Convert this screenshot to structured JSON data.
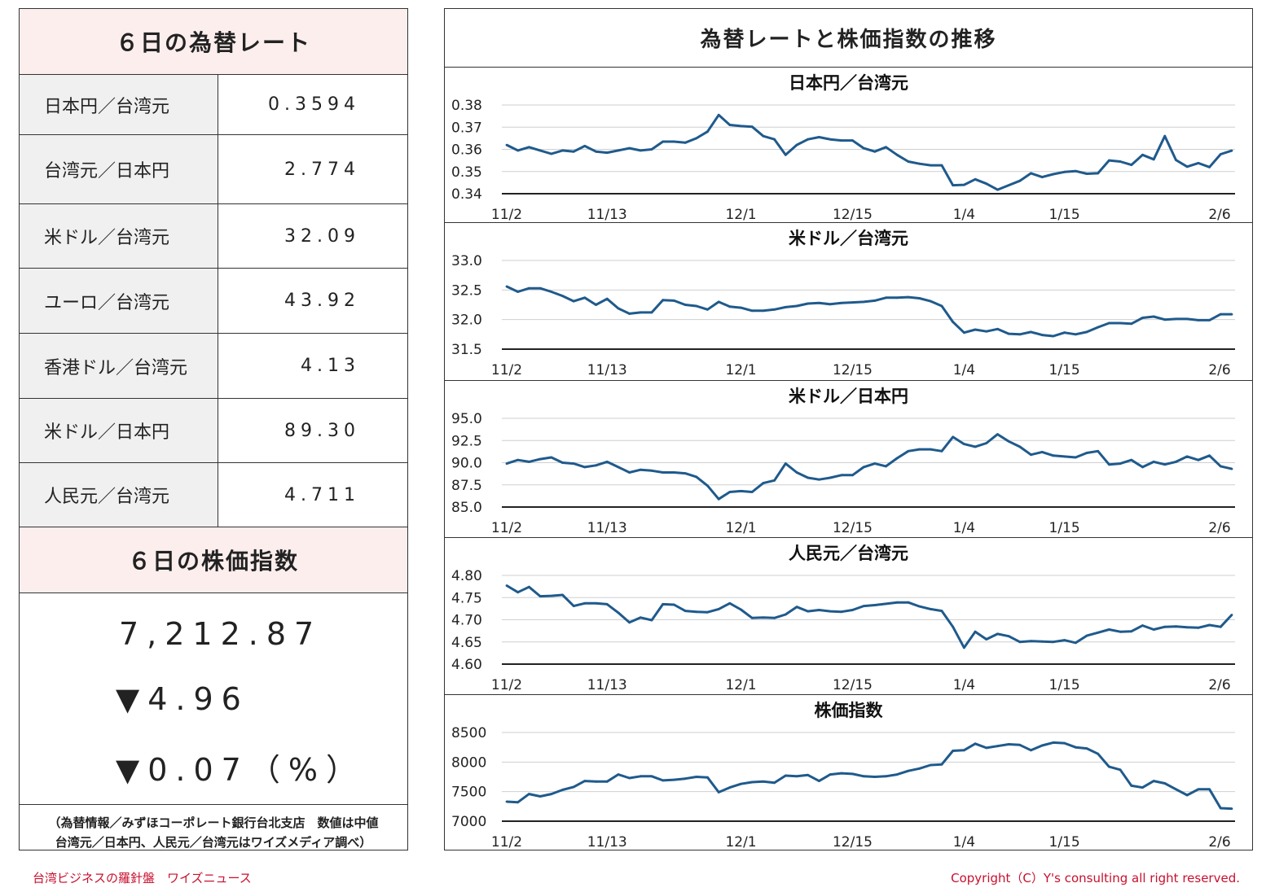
{
  "left": {
    "rates_title": "６日の為替レート",
    "rates": [
      {
        "name": "日本円／台湾元",
        "value": "0.3594"
      },
      {
        "name": "台湾元／日本円",
        "value": "2.774"
      },
      {
        "name": "米ドル／台湾元",
        "value": "32.09"
      },
      {
        "name": "ユーロ／台湾元",
        "value": "43.92"
      },
      {
        "name": "香港ドル／台湾元",
        "value": "4.13"
      },
      {
        "name": "米ドル／日本円",
        "value": "89.30"
      },
      {
        "name": "人民元／台湾元",
        "value": "4.711"
      }
    ],
    "stock_title": "６日の株価指数",
    "stock_value": "7,212.87",
    "stock_change": "▼4.96",
    "stock_change_pct": "▼0.07（%）",
    "note_line1": "（為替情報／みずほコーポレート銀行台北支店　数値は中値",
    "note_line2": "台湾元／日本円、人民元／台湾元はワイズメディア調べ）"
  },
  "right": {
    "title": "為替レートと株価指数の推移"
  },
  "footer": {
    "left": "台湾ビジネスの羅針盤　ワイズニュース",
    "right": "Copyright（C）Y's consulting all right reserved."
  },
  "colors": {
    "line": "#1f5a8c",
    "header_bg": "#fdeeee",
    "label_bg": "#f0f0f0",
    "footer": "#c8102e"
  },
  "chart_data": [
    {
      "type": "line",
      "title": "日本円／台湾元",
      "x_ticks": [
        "11/2",
        "11/13",
        "12/1",
        "12/15",
        "1/4",
        "1/15",
        "2/6"
      ],
      "x_tick_index": [
        0,
        9,
        21,
        31,
        41,
        50,
        65
      ],
      "ylim": [
        0.34,
        0.38
      ],
      "y_ticks": [
        "0.38",
        "0.37",
        "0.36",
        "0.35",
        "0.34"
      ],
      "values": [
        0.362,
        0.3595,
        0.361,
        0.3595,
        0.358,
        0.3595,
        0.359,
        0.3615,
        0.359,
        0.3585,
        0.3595,
        0.3605,
        0.3595,
        0.36,
        0.3635,
        0.3635,
        0.363,
        0.365,
        0.368,
        0.3755,
        0.371,
        0.3705,
        0.3702,
        0.366,
        0.3645,
        0.3575,
        0.362,
        0.3645,
        0.3655,
        0.3645,
        0.364,
        0.364,
        0.3605,
        0.359,
        0.361,
        0.3575,
        0.3545,
        0.3535,
        0.3528,
        0.3528,
        0.3438,
        0.344,
        0.3465,
        0.3445,
        0.3418,
        0.3438,
        0.3458,
        0.3492,
        0.3475,
        0.3488,
        0.3498,
        0.3502,
        0.349,
        0.3492,
        0.355,
        0.3545,
        0.353,
        0.3575,
        0.3555,
        0.366,
        0.3552,
        0.3522,
        0.3538,
        0.352,
        0.3578,
        0.3594
      ]
    },
    {
      "type": "line",
      "title": "米ドル／台湾元",
      "x_ticks": [
        "11/2",
        "11/13",
        "12/1",
        "12/15",
        "1/4",
        "1/15",
        "2/6"
      ],
      "x_tick_index": [
        0,
        9,
        21,
        31,
        41,
        50,
        65
      ],
      "ylim": [
        31.5,
        33.0
      ],
      "y_ticks": [
        "33.0",
        "32.5",
        "32.0",
        "31.5"
      ],
      "values": [
        32.56,
        32.47,
        32.53,
        32.53,
        32.47,
        32.4,
        32.31,
        32.37,
        32.25,
        32.35,
        32.19,
        32.1,
        32.12,
        32.12,
        32.33,
        32.32,
        32.25,
        32.23,
        32.17,
        32.3,
        32.22,
        32.2,
        32.15,
        32.15,
        32.17,
        32.21,
        32.23,
        32.27,
        32.28,
        32.26,
        32.28,
        32.29,
        32.3,
        32.32,
        32.37,
        32.37,
        32.38,
        32.36,
        32.31,
        32.23,
        31.96,
        31.78,
        31.83,
        31.8,
        31.84,
        31.76,
        31.75,
        31.79,
        31.74,
        31.72,
        31.78,
        31.75,
        31.79,
        31.87,
        31.94,
        31.94,
        31.93,
        32.03,
        32.05,
        32.0,
        32.01,
        32.01,
        31.99,
        31.99,
        32.09,
        32.09
      ]
    },
    {
      "type": "line",
      "title": "米ドル／日本円",
      "x_ticks": [
        "11/2",
        "11/13",
        "12/1",
        "12/15",
        "1/4",
        "1/15",
        "2/6"
      ],
      "x_tick_index": [
        0,
        9,
        21,
        31,
        41,
        50,
        65
      ],
      "ylim": [
        85.0,
        95.0
      ],
      "y_ticks": [
        "95.0",
        "92.5",
        "90.0",
        "87.5",
        "85.0"
      ],
      "values": [
        89.9,
        90.3,
        90.1,
        90.4,
        90.6,
        90.0,
        89.9,
        89.5,
        89.7,
        90.1,
        89.5,
        88.9,
        89.2,
        89.1,
        88.9,
        88.9,
        88.8,
        88.4,
        87.4,
        85.9,
        86.7,
        86.8,
        86.7,
        87.7,
        88.0,
        89.9,
        88.9,
        88.3,
        88.1,
        88.3,
        88.6,
        88.6,
        89.5,
        89.9,
        89.6,
        90.5,
        91.3,
        91.5,
        91.5,
        91.3,
        92.9,
        92.1,
        91.8,
        92.2,
        93.2,
        92.4,
        91.8,
        90.9,
        91.2,
        90.8,
        90.7,
        90.6,
        91.1,
        91.3,
        89.8,
        89.9,
        90.3,
        89.5,
        90.1,
        89.8,
        90.1,
        90.7,
        90.3,
        90.8,
        89.6,
        89.3
      ]
    },
    {
      "type": "line",
      "title": "人民元／台湾元",
      "x_ticks": [
        "11/2",
        "11/13",
        "12/1",
        "12/15",
        "1/4",
        "1/15",
        "2/6"
      ],
      "x_tick_index": [
        0,
        9,
        21,
        31,
        41,
        50,
        65
      ],
      "ylim": [
        4.6,
        4.8
      ],
      "y_ticks": [
        "4.80",
        "4.75",
        "4.70",
        "4.65",
        "4.60"
      ],
      "values": [
        4.777,
        4.762,
        4.774,
        4.753,
        4.754,
        4.756,
        4.731,
        4.737,
        4.737,
        4.735,
        4.716,
        4.694,
        4.705,
        4.699,
        4.735,
        4.734,
        4.72,
        4.718,
        4.717,
        4.724,
        4.737,
        4.723,
        4.704,
        4.705,
        4.704,
        4.712,
        4.729,
        4.719,
        4.722,
        4.719,
        4.718,
        4.722,
        4.731,
        4.733,
        4.736,
        4.739,
        4.739,
        4.73,
        4.724,
        4.72,
        4.684,
        4.637,
        4.673,
        4.656,
        4.668,
        4.663,
        4.65,
        4.652,
        4.651,
        4.65,
        4.654,
        4.648,
        4.664,
        4.671,
        4.678,
        4.673,
        4.674,
        4.687,
        4.678,
        4.684,
        4.685,
        4.683,
        4.682,
        4.688,
        4.684,
        4.711
      ]
    },
    {
      "type": "line",
      "title": "株価指数",
      "x_ticks": [
        "11/2",
        "11/13",
        "12/1",
        "12/15",
        "1/4",
        "1/15",
        "2/6"
      ],
      "x_tick_index": [
        0,
        9,
        21,
        31,
        41,
        50,
        65
      ],
      "ylim": [
        7000,
        8500
      ],
      "y_ticks": [
        "8500",
        "8000",
        "7500",
        "7000"
      ],
      "values": [
        7330,
        7320,
        7460,
        7420,
        7460,
        7530,
        7580,
        7680,
        7670,
        7670,
        7790,
        7730,
        7760,
        7760,
        7690,
        7700,
        7720,
        7750,
        7740,
        7490,
        7570,
        7630,
        7660,
        7670,
        7650,
        7770,
        7760,
        7780,
        7680,
        7790,
        7810,
        7800,
        7760,
        7750,
        7760,
        7790,
        7850,
        7890,
        7950,
        7960,
        8190,
        8200,
        8310,
        8240,
        8270,
        8300,
        8290,
        8200,
        8280,
        8330,
        8320,
        8250,
        8230,
        8140,
        7920,
        7870,
        7600,
        7570,
        7680,
        7640,
        7540,
        7440,
        7540,
        7540,
        7220,
        7212
      ]
    }
  ]
}
